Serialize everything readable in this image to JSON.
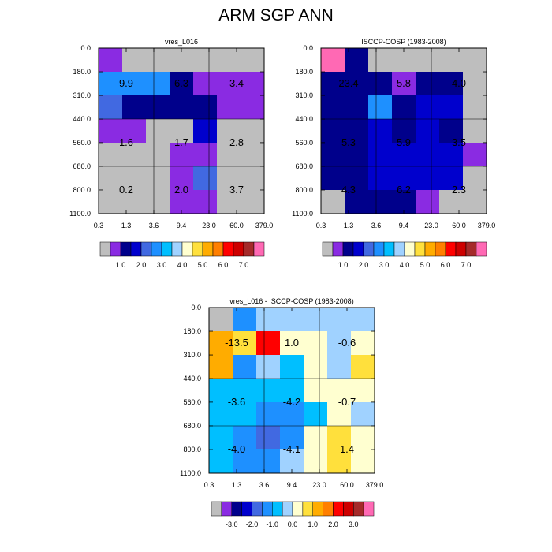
{
  "title": "ARM SGP ANN",
  "x_tick_labels": [
    "0.3",
    "1.3",
    "3.6",
    "9.4",
    "23.0",
    "60.0",
    "379.0"
  ],
  "y_tick_labels": [
    "0.0",
    "180.0",
    "310.0",
    "440.0",
    "560.0",
    "680.0",
    "800.0",
    "1100.0"
  ],
  "colors": {
    "missing": "#bebebe",
    "grid_lines": "#000000",
    "palette": [
      "#bebebe",
      "#8a2be2",
      "#00008b",
      "#0000cd",
      "#4169e1",
      "#1e90ff",
      "#00bfff",
      "#a0d2ff",
      "#ffffd0",
      "#ffe03c",
      "#ffac00",
      "#ff7f00",
      "#ff0000",
      "#cd0000",
      "#a52a2a",
      "#ff69b4"
    ]
  },
  "chart_data": [
    {
      "type": "heatmap",
      "title": "vres_L016",
      "columns": 7,
      "rows": 7,
      "cell_colors": [
        [
          "#8a2be2",
          "#bebebe",
          "#bebebe",
          "#bebebe",
          "#bebebe",
          "#bebebe",
          "#bebebe"
        ],
        [
          "#1e90ff",
          "#1e90ff",
          "#1e90ff",
          "#00008b",
          "#8a2be2",
          "#8a2be2",
          "#8a2be2"
        ],
        [
          "#4169e1",
          "#00008b",
          "#00008b",
          "#00008b",
          "#00008b",
          "#8a2be2",
          "#8a2be2"
        ],
        [
          "#8a2be2",
          "#8a2be2",
          "#bebebe",
          "#bebebe",
          "#0000cd",
          "#bebebe",
          "#bebebe"
        ],
        [
          "#bebebe",
          "#bebebe",
          "#bebebe",
          "#8a2be2",
          "#8a2be2",
          "#bebebe",
          "#bebebe"
        ],
        [
          "#bebebe",
          "#bebebe",
          "#bebebe",
          "#8a2be2",
          "#4169e1",
          "#bebebe",
          "#bebebe"
        ],
        [
          "#bebebe",
          "#bebebe",
          "#bebebe",
          "#8a2be2",
          "#8a2be2",
          "#bebebe",
          "#bebebe"
        ]
      ],
      "summary_values": [
        "9.9",
        "6.3",
        "3.4",
        "1.6",
        "1.7",
        "2.8",
        "0.2",
        "2.0",
        "3.7"
      ],
      "colorbar_labels": [
        "1.0",
        "2.0",
        "3.0",
        "4.0",
        "5.0",
        "6.0",
        "7.0"
      ]
    },
    {
      "type": "heatmap",
      "title": "ISCCP-COSP (1983-2008)",
      "columns": 7,
      "rows": 7,
      "cell_colors": [
        [
          "#ff69b4",
          "#00008b",
          "#bebebe",
          "#bebebe",
          "#bebebe",
          "#bebebe",
          "#bebebe"
        ],
        [
          "#00008b",
          "#00008b",
          "#00008b",
          "#8a2be2",
          "#00008b",
          "#00008b",
          "#bebebe"
        ],
        [
          "#00008b",
          "#00008b",
          "#1e90ff",
          "#00008b",
          "#0000cd",
          "#0000cd",
          "#bebebe"
        ],
        [
          "#00008b",
          "#00008b",
          "#0000cd",
          "#00008b",
          "#0000cd",
          "#00008b",
          "#bebebe"
        ],
        [
          "#00008b",
          "#00008b",
          "#0000cd",
          "#0000cd",
          "#0000cd",
          "#0000cd",
          "#8a2be2"
        ],
        [
          "#00008b",
          "#00008b",
          "#0000cd",
          "#0000cd",
          "#0000cd",
          "#0000cd",
          "#bebebe"
        ],
        [
          "#bebebe",
          "#00008b",
          "#00008b",
          "#00008b",
          "#8a2be2",
          "#bebebe",
          "#bebebe"
        ]
      ],
      "summary_values": [
        "23.4",
        "5.8",
        "4.0",
        "5.3",
        "5.9",
        "3.5",
        "4.3",
        "6.2",
        "2.3"
      ],
      "colorbar_labels": [
        "1.0",
        "2.0",
        "3.0",
        "4.0",
        "5.0",
        "6.0",
        "7.0"
      ]
    },
    {
      "type": "heatmap",
      "title": "vres_L016 - ISCCP-COSP (1983-2008)",
      "columns": 7,
      "rows": 7,
      "cell_colors": [
        [
          "#bebebe",
          "#1e90ff",
          "#a0d2ff",
          "#a0d2ff",
          "#a0d2ff",
          "#a0d2ff",
          "#a0d2ff"
        ],
        [
          "#ffac00",
          "#ffe03c",
          "#ff0000",
          "#ffffd0",
          "#ffffd0",
          "#a0d2ff",
          "#ffffd0"
        ],
        [
          "#ffac00",
          "#1e90ff",
          "#a0d2ff",
          "#00bfff",
          "#ffffd0",
          "#a0d2ff",
          "#ffe03c"
        ],
        [
          "#00bfff",
          "#00bfff",
          "#00bfff",
          "#00bfff",
          "#ffffd0",
          "#ffffd0",
          "#ffffd0"
        ],
        [
          "#00bfff",
          "#00bfff",
          "#1e90ff",
          "#1e90ff",
          "#00bfff",
          "#ffffd0",
          "#a0d2ff"
        ],
        [
          "#00bfff",
          "#1e90ff",
          "#4169e1",
          "#1e90ff",
          "#ffffd0",
          "#ffe03c",
          "#ffffd0"
        ],
        [
          "#00bfff",
          "#1e90ff",
          "#1e90ff",
          "#a0d2ff",
          "#ffffd0",
          "#ffe03c",
          "#ffffd0"
        ]
      ],
      "summary_values": [
        "-13.5",
        "1.0",
        "-0.6",
        "-3.6",
        "-4.2",
        "-0.7",
        "-4.0",
        "-4.1",
        "1.4"
      ],
      "colorbar_labels": [
        "-3.0",
        "-2.0",
        "-1.0",
        "0.0",
        "1.0",
        "2.0",
        "3.0"
      ]
    }
  ]
}
